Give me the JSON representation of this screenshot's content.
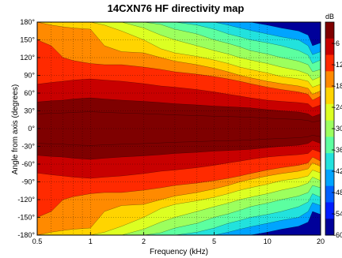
{
  "chart_data": {
    "type": "heatmap",
    "title": "14CXN76 HF directivity map",
    "xlabel": "Frequency (kHz)",
    "ylabel": "Angle from axis (degrees)",
    "x_scale": "log",
    "x_range_khz": [
      0.5,
      20
    ],
    "x_ticks": [
      0.5,
      1,
      2,
      5,
      10,
      20
    ],
    "x_tick_labels": [
      "0.5",
      "1",
      "2",
      "5",
      "10",
      "20"
    ],
    "y_range_deg": [
      -180,
      180
    ],
    "y_ticks": [
      180,
      150,
      120,
      90,
      60,
      30,
      0,
      -30,
      -60,
      -90,
      -120,
      -150,
      -180
    ],
    "y_tick_labels": [
      "180°",
      "150°",
      "120°",
      "90°",
      "60°",
      "30°",
      "0°",
      "-30°",
      "-60°",
      "-90°",
      "-120°",
      "-150°",
      "-180°"
    ],
    "grid": true,
    "colorbar": {
      "unit": "dB",
      "range": [
        -60,
        0
      ],
      "ticks": [
        -6,
        -12,
        -18,
        -24,
        -30,
        -36,
        -42,
        -48,
        -54,
        -60
      ],
      "tick_labels": [
        "-6",
        "-12",
        "-18",
        "-24",
        "-30",
        "-36",
        "-42",
        "-48",
        "-54",
        "-60"
      ],
      "colors": [
        "#7f0000",
        "#c80000",
        "#ff2a00",
        "#ff8a00",
        "#ffd400",
        "#dcff22",
        "#9cff5e",
        "#5cffa0",
        "#22e2dd",
        "#00a4ff",
        "#0060ff",
        "#001cff",
        "#00009a"
      ]
    },
    "frequencies_khz": [
      0.5,
      0.6,
      0.7,
      0.8,
      1.0,
      1.2,
      1.5,
      2.0,
      2.5,
      3.0,
      4.0,
      5.0,
      6.0,
      7.0,
      8.0,
      10.0,
      12.0,
      15.0,
      17.0,
      18.0,
      20.0
    ],
    "contour_boundaries": [
      {
        "level_db": -6,
        "angle_deg": [
          45,
          47,
          48,
          50,
          52,
          50,
          48,
          46,
          44,
          42,
          40,
          38,
          37,
          36,
          35,
          32,
          30,
          28,
          25,
          20,
          25
        ]
      },
      {
        "level_db": -12,
        "angle_deg": [
          75,
          78,
          80,
          82,
          84,
          82,
          80,
          76,
          72,
          70,
          66,
          62,
          58,
          55,
          52,
          48,
          46,
          44,
          42,
          35,
          40
        ]
      },
      {
        "level_db": -18,
        "angle_deg": [
          150,
          140,
          120,
          115,
          110,
          108,
          108,
          104,
          100,
          96,
          92,
          88,
          84,
          80,
          76,
          70,
          66,
          62,
          58,
          48,
          55
        ]
      },
      {
        "level_db": -24,
        "angle_deg": [
          180,
          175,
          172,
          170,
          168,
          140,
          130,
          128,
          120,
          114,
          108,
          102,
          96,
          90,
          86,
          80,
          76,
          72,
          68,
          58,
          64
        ]
      },
      {
        "level_db": -30,
        "angle_deg": [
          181,
          181,
          181,
          181,
          181,
          175,
          165,
          150,
          135,
          128,
          122,
          116,
          110,
          104,
          100,
          94,
          88,
          84,
          80,
          70,
          75
        ]
      },
      {
        "level_db": -36,
        "angle_deg": [
          181,
          181,
          181,
          181,
          181,
          181,
          181,
          170,
          158,
          150,
          140,
          132,
          126,
          120,
          116,
          110,
          104,
          98,
          92,
          82,
          88
        ]
      },
      {
        "level_db": -42,
        "angle_deg": [
          181,
          181,
          181,
          181,
          181,
          181,
          181,
          181,
          176,
          168,
          160,
          150,
          144,
          138,
          132,
          126,
          120,
          114,
          108,
          96,
          100
        ]
      },
      {
        "level_db": -48,
        "angle_deg": [
          181,
          181,
          181,
          181,
          181,
          181,
          181,
          181,
          181,
          181,
          175,
          168,
          160,
          155,
          150,
          145,
          140,
          132,
          124,
          110,
          116
        ]
      },
      {
        "level_db": -54,
        "angle_deg": [
          181,
          181,
          181,
          181,
          181,
          181,
          181,
          181,
          181,
          181,
          181,
          181,
          175,
          170,
          166,
          160,
          155,
          150,
          140,
          125,
          130
        ]
      },
      {
        "level_db": -60,
        "angle_deg": [
          181,
          181,
          181,
          181,
          181,
          181,
          181,
          181,
          181,
          181,
          181,
          181,
          181,
          181,
          181,
          175,
          170,
          165,
          158,
          140,
          145
        ]
      }
    ]
  }
}
